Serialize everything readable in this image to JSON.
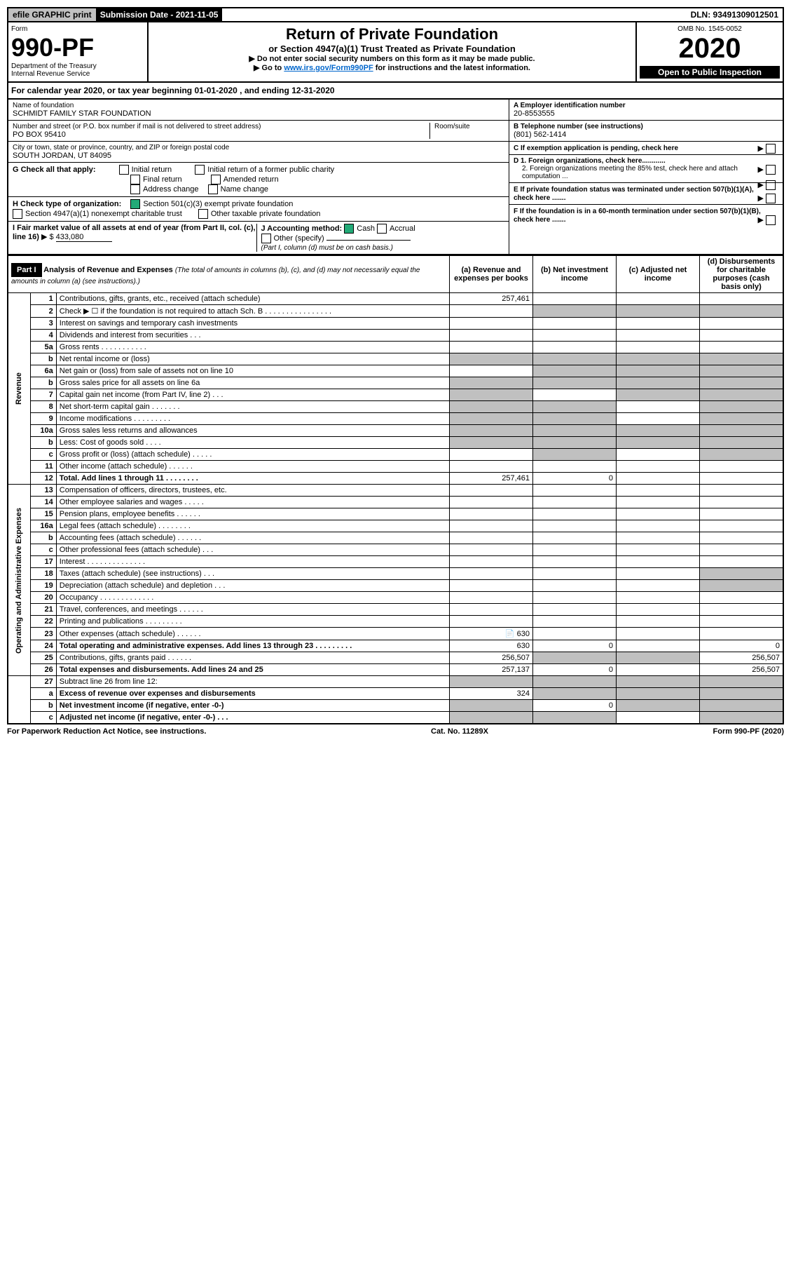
{
  "top": {
    "efile": "efile GRAPHIC print",
    "submission_label": "Submission Date - 2021-11-05",
    "dln": "DLN: 93491309012501"
  },
  "header": {
    "form_label": "Form",
    "form_number": "990-PF",
    "dept": "Department of the Treasury",
    "irs": "Internal Revenue Service",
    "title": "Return of Private Foundation",
    "subtitle": "or Section 4947(a)(1) Trust Treated as Private Foundation",
    "instr1": "▶ Do not enter social security numbers on this form as it may be made public.",
    "instr2_pre": "▶ Go to ",
    "instr2_link": "www.irs.gov/Form990PF",
    "instr2_post": " for instructions and the latest information.",
    "omb": "OMB No. 1545-0052",
    "year": "2020",
    "open": "Open to Public Inspection"
  },
  "calendar": {
    "text_pre": "For calendar year 2020, or tax year beginning ",
    "begin": "01-01-2020",
    "mid": " , and ending ",
    "end": "12-31-2020"
  },
  "org": {
    "name_label": "Name of foundation",
    "name": "SCHMIDT FAMILY STAR FOUNDATION",
    "addr_label": "Number and street (or P.O. box number if mail is not delivered to street address)",
    "addr": "PO BOX 95410",
    "room_label": "Room/suite",
    "city_label": "City or town, state or province, country, and ZIP or foreign postal code",
    "city": "SOUTH JORDAN, UT  84095",
    "ein_label": "A Employer identification number",
    "ein": "20-8553555",
    "phone_label": "B Telephone number (see instructions)",
    "phone": "(801) 562-1414",
    "c_label": "C If exemption application is pending, check here",
    "d1": "D 1. Foreign organizations, check here............",
    "d2": "2. Foreign organizations meeting the 85% test, check here and attach computation ...",
    "e_label": "E  If private foundation status was terminated under section 507(b)(1)(A), check here .......",
    "f_label": "F  If the foundation is in a 60-month termination under section 507(b)(1)(B), check here ......."
  },
  "boxG": {
    "label": "G Check all that apply:",
    "opts": [
      "Initial return",
      "Final return",
      "Address change",
      "Initial return of a former public charity",
      "Amended return",
      "Name change"
    ]
  },
  "boxH": {
    "label": "H Check type of organization:",
    "opt1": "Section 501(c)(3) exempt private foundation",
    "opt2": "Section 4947(a)(1) nonexempt charitable trust",
    "opt3": "Other taxable private foundation"
  },
  "boxI": {
    "label": "I Fair market value of all assets at end of year (from Part II, col. (c), line 16)",
    "value": "433,080"
  },
  "boxJ": {
    "label": "J Accounting method:",
    "cash": "Cash",
    "accrual": "Accrual",
    "other": "Other (specify)",
    "note": "(Part I, column (d) must be on cash basis.)"
  },
  "part1": {
    "label": "Part I",
    "title": "Analysis of Revenue and Expenses",
    "note": "(The total of amounts in columns (b), (c), and (d) may not necessarily equal the amounts in column (a) (see instructions).)",
    "col_a": "(a) Revenue and expenses per books",
    "col_b": "(b) Net investment income",
    "col_c": "(c) Adjusted net income",
    "col_d": "(d) Disbursements for charitable purposes (cash basis only)"
  },
  "sections": {
    "revenue": "Revenue",
    "opex": "Operating and Administrative Expenses"
  },
  "rows": [
    {
      "n": "1",
      "d": "Contributions, gifts, grants, etc., received (attach schedule)",
      "a": "257,461",
      "sec": "rev"
    },
    {
      "n": "2",
      "d": "Check ▶ ☐ if the foundation is not required to attach Sch. B       .  .  .  .  .  .  .  .  .  .  .  .  .  .  .  .",
      "sec": "rev",
      "shade_bcd": true
    },
    {
      "n": "3",
      "d": "Interest on savings and temporary cash investments",
      "sec": "rev"
    },
    {
      "n": "4",
      "d": "Dividends and interest from securities    .   .   .",
      "sec": "rev"
    },
    {
      "n": "5a",
      "d": "Gross rents    .   .   .   .   .   .   .   .   .   .   .",
      "sec": "rev"
    },
    {
      "n": "b",
      "d": "Net rental income or (loss)  ",
      "sec": "rev",
      "shade_all": true
    },
    {
      "n": "6a",
      "d": "Net gain or (loss) from sale of assets not on line 10",
      "sec": "rev",
      "shade_bcd": true
    },
    {
      "n": "b",
      "d": "Gross sales price for all assets on line 6a ",
      "sec": "rev",
      "shade_all": true
    },
    {
      "n": "7",
      "d": "Capital gain net income (from Part IV, line 2)   .   .   .",
      "sec": "rev",
      "shade_acd": true
    },
    {
      "n": "8",
      "d": "Net short-term capital gain   .   .   .   .   .   .   .",
      "sec": "rev",
      "shade_abd": true
    },
    {
      "n": "9",
      "d": "Income modifications   .   .   .   .   .   .   .   .   .",
      "sec": "rev",
      "shade_abd": true
    },
    {
      "n": "10a",
      "d": "Gross sales less returns and allowances",
      "sec": "rev",
      "shade_all": true
    },
    {
      "n": "b",
      "d": "Less: Cost of goods sold    .   .   .   .",
      "sec": "rev",
      "shade_all": true
    },
    {
      "n": "c",
      "d": "Gross profit or (loss) (attach schedule)    .   .   .   .   .",
      "sec": "rev",
      "shade_bd": true
    },
    {
      "n": "11",
      "d": "Other income (attach schedule)    .   .   .   .   .   .",
      "sec": "rev"
    },
    {
      "n": "12",
      "d": "Total. Add lines 1 through 11   .   .   .   .   .   .   .   .",
      "a": "257,461",
      "b": "0",
      "sec": "rev",
      "bold": true
    },
    {
      "n": "13",
      "d": "Compensation of officers, directors, trustees, etc.",
      "sec": "op"
    },
    {
      "n": "14",
      "d": "Other employee salaries and wages   .   .   .   .   .",
      "sec": "op"
    },
    {
      "n": "15",
      "d": "Pension plans, employee benefits   .   .   .   .   .   .",
      "sec": "op"
    },
    {
      "n": "16a",
      "d": "Legal fees (attach schedule)   .   .   .   .   .   .   .   .",
      "sec": "op"
    },
    {
      "n": "b",
      "d": "Accounting fees (attach schedule)   .   .   .   .   .   .",
      "sec": "op"
    },
    {
      "n": "c",
      "d": "Other professional fees (attach schedule)    .   .   .",
      "sec": "op"
    },
    {
      "n": "17",
      "d": "Interest   .   .   .   .   .   .   .   .   .   .   .   .   .   .",
      "sec": "op"
    },
    {
      "n": "18",
      "d": "Taxes (attach schedule) (see instructions)    .   .   .",
      "sec": "op",
      "shade_d": true
    },
    {
      "n": "19",
      "d": "Depreciation (attach schedule) and depletion    .   .   .",
      "sec": "op",
      "shade_d": true
    },
    {
      "n": "20",
      "d": "Occupancy   .   .   .   .   .   .   .   .   .   .   .   .   .",
      "sec": "op"
    },
    {
      "n": "21",
      "d": "Travel, conferences, and meetings   .   .   .   .   .   .",
      "sec": "op"
    },
    {
      "n": "22",
      "d": "Printing and publications   .   .   .   .   .   .   .   .   .",
      "sec": "op"
    },
    {
      "n": "23",
      "d": "Other expenses (attach schedule)   .   .   .   .   .   .",
      "a": "630",
      "sec": "op",
      "icon": true
    },
    {
      "n": "24",
      "d": "Total operating and administrative expenses. Add lines 13 through 23   .   .   .   .   .   .   .   .   .",
      "a": "630",
      "b": "0",
      "dd": "0",
      "sec": "op",
      "bold": true
    },
    {
      "n": "25",
      "d": "Contributions, gifts, grants paid    .   .   .   .   .   .",
      "a": "256,507",
      "dd": "256,507",
      "sec": "op",
      "shade_bc": true
    },
    {
      "n": "26",
      "d": "Total expenses and disbursements. Add lines 24 and 25",
      "a": "257,137",
      "b": "0",
      "dd": "256,507",
      "sec": "op",
      "bold": true
    },
    {
      "n": "27",
      "d": "Subtract line 26 from line 12:",
      "sec": "net",
      "shade_all": true
    },
    {
      "n": "a",
      "d": "Excess of revenue over expenses and disbursements",
      "a": "324",
      "sec": "net",
      "bold": true,
      "shade_bcd": true
    },
    {
      "n": "b",
      "d": "Net investment income (if negative, enter -0-)",
      "b": "0",
      "sec": "net",
      "bold": true,
      "shade_acd": true
    },
    {
      "n": "c",
      "d": "Adjusted net income (if negative, enter -0-)   .  .  .",
      "sec": "net",
      "bold": true,
      "shade_abd": true
    }
  ],
  "footer": {
    "left": "For Paperwork Reduction Act Notice, see instructions.",
    "mid": "Cat. No. 11289X",
    "right": "Form 990-PF (2020)"
  }
}
